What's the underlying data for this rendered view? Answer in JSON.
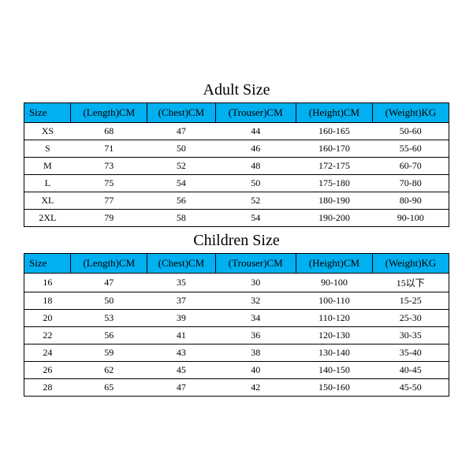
{
  "header_bg": "#00b0f0",
  "border_color": "#000000",
  "adult": {
    "title": "Adult Size",
    "columns": [
      "Size",
      "(Length)CM",
      "(Chest)CM",
      "(Trouser)CM",
      "(Height)CM",
      "(Weight)KG"
    ],
    "rows": [
      [
        "XS",
        "68",
        "47",
        "44",
        "160-165",
        "50-60"
      ],
      [
        "S",
        "71",
        "50",
        "46",
        "160-170",
        "55-60"
      ],
      [
        "M",
        "73",
        "52",
        "48",
        "172-175",
        "60-70"
      ],
      [
        "L",
        "75",
        "54",
        "50",
        "175-180",
        "70-80"
      ],
      [
        "XL",
        "77",
        "56",
        "52",
        "180-190",
        "80-90"
      ],
      [
        "2XL",
        "79",
        "58",
        "54",
        "190-200",
        "90-100"
      ]
    ]
  },
  "children": {
    "title": "Children Size",
    "columns": [
      "Size",
      "(Length)CM",
      "(Chest)CM",
      "(Trouser)CM",
      "(Height)CM",
      "(Weight)KG"
    ],
    "rows": [
      [
        "16",
        "47",
        "35",
        "30",
        "90-100",
        "15以下"
      ],
      [
        "18",
        "50",
        "37",
        "32",
        "100-110",
        "15-25"
      ],
      [
        "20",
        "53",
        "39",
        "34",
        "110-120",
        "25-30"
      ],
      [
        "22",
        "56",
        "41",
        "36",
        "120-130",
        "30-35"
      ],
      [
        "24",
        "59",
        "43",
        "38",
        "130-140",
        "35-40"
      ],
      [
        "26",
        "62",
        "45",
        "40",
        "140-150",
        "40-45"
      ],
      [
        "28",
        "65",
        "47",
        "42",
        "150-160",
        "45-50"
      ]
    ]
  }
}
